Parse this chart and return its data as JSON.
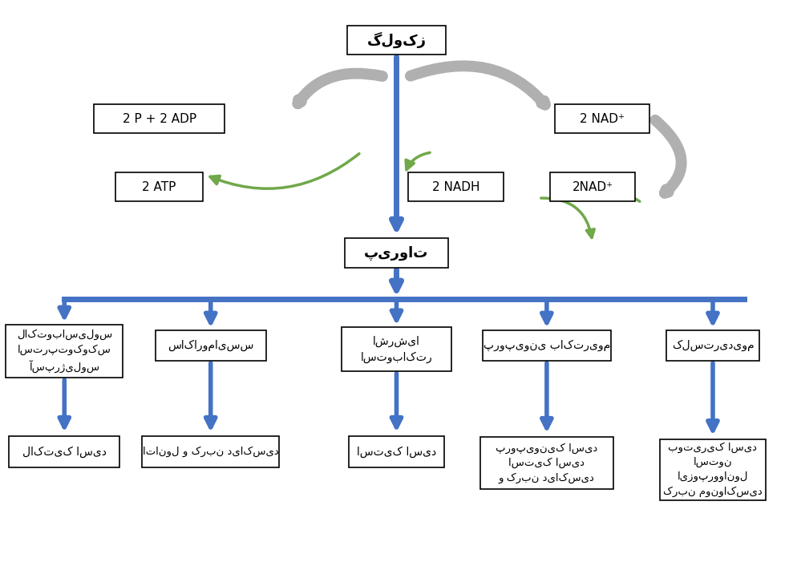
{
  "bg_color": "#ffffff",
  "arrow_blue": "#4472c4",
  "arrow_green": "#70a84a",
  "arrow_gray": "#b0b0b0",
  "box_edge": "#000000",
  "figsize": [
    9.89,
    7.01
  ],
  "dpi": 100,
  "texts": {
    "glucose": "گلوکز",
    "p_adp": "2 P + 2 ADP",
    "atp": "2 ATP",
    "nad_top": "2 NAD⁺",
    "nadh": "2 NADH",
    "nad_right": "2NAD⁺",
    "pyruvate": "پیروات",
    "bact1_l1": "لاکتوباسیلوس",
    "bact1_l2": "استرپتوکوکس",
    "bact1_l3": "آسپرژیلوس",
    "bact2": "ساکارومایسس",
    "bact3_l1": "اشرشیا",
    "bact3_l2": "استوباکتر",
    "bact4": "پروپیونی باکتریوم",
    "bact5": "کلستریدیوم",
    "prod1": "لاکتیک اسید",
    "prod2": "اتانول و کربن دی‌اکسید",
    "prod3": "استیک اسید",
    "prod4_l1": "پروپیونیک اسید",
    "prod4_l2": "استیک اسید",
    "prod4_l3": "و کربن دی‌اکسید",
    "prod5_l1": "بوتیریک اسید",
    "prod5_l2": "استون",
    "prod5_l3": "ایزوپرووانول",
    "prod5_l4": "کربن مونواکسید"
  }
}
